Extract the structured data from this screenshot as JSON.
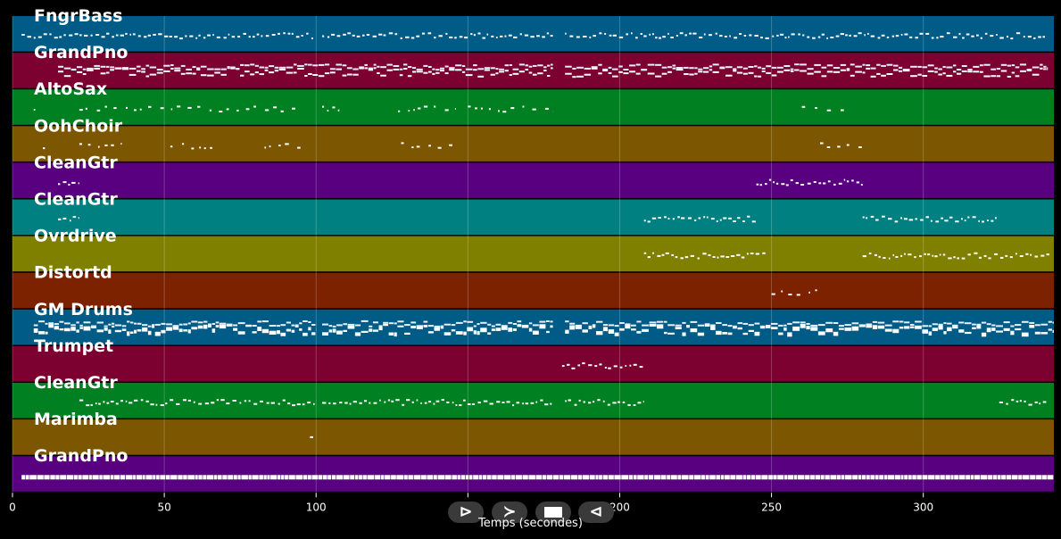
{
  "chart_data": {
    "type": "piano-roll",
    "xlabel": "Temps (secondes)",
    "x_ticks": [
      0,
      50,
      100,
      150,
      200,
      250,
      300
    ],
    "xlim": [
      0,
      343
    ],
    "grid": true,
    "tracks": [
      {
        "name": "FngrBass",
        "color": "#005c86",
        "segments": [
          [
            3,
            99
          ],
          [
            102,
            178
          ],
          [
            182,
            341
          ]
        ]
      },
      {
        "name": "GrandPno",
        "color": "#7c0030",
        "segments": [
          [
            15,
            178
          ],
          [
            182,
            341
          ]
        ]
      },
      {
        "name": "AltoSax",
        "color": "#008020",
        "segments": [
          [
            7,
            10
          ],
          [
            22,
            95
          ],
          [
            102,
            108
          ],
          [
            127,
            146
          ],
          [
            150,
            178
          ],
          [
            260,
            275
          ]
        ]
      },
      {
        "name": "OohChoir",
        "color": "#7c5600",
        "segments": [
          [
            10,
            11
          ],
          [
            22,
            36
          ],
          [
            52,
            66
          ],
          [
            83,
            96
          ],
          [
            128,
            146
          ],
          [
            266,
            281
          ]
        ]
      },
      {
        "name": "CleanGtr",
        "color": "#580080",
        "segments": [
          [
            15,
            22
          ],
          [
            245,
            280
          ]
        ]
      },
      {
        "name": "CleanGtr",
        "color": "#008080",
        "segments": [
          [
            15,
            22
          ],
          [
            208,
            245
          ],
          [
            280,
            325
          ]
        ]
      },
      {
        "name": "Ovrdrive",
        "color": "#808000",
        "segments": [
          [
            208,
            248
          ],
          [
            280,
            342
          ]
        ]
      },
      {
        "name": "Distortd",
        "color": "#7c2200",
        "segments": [
          [
            250,
            265
          ]
        ]
      },
      {
        "name": "GM Drums",
        "color": "#005c86",
        "segments": [
          [
            7,
            100
          ],
          [
            102,
            178
          ],
          [
            182,
            343
          ]
        ]
      },
      {
        "name": "Trumpet",
        "color": "#7c0030",
        "segments": [
          [
            181,
            208
          ]
        ]
      },
      {
        "name": "CleanGtr",
        "color": "#008020",
        "segments": [
          [
            22,
            100
          ],
          [
            102,
            178
          ],
          [
            182,
            208
          ],
          [
            325,
            341
          ]
        ]
      },
      {
        "name": "Marimba",
        "color": "#7c5600",
        "segments": [
          [
            98,
            100
          ]
        ]
      },
      {
        "name": "GrandPno",
        "color": "#580080",
        "segments": [
          [
            3,
            343
          ]
        ]
      }
    ]
  },
  "controls": {
    "play": "⊳",
    "forward": "≻",
    "stop_icon": "stop-square-icon",
    "back": "⊲"
  }
}
